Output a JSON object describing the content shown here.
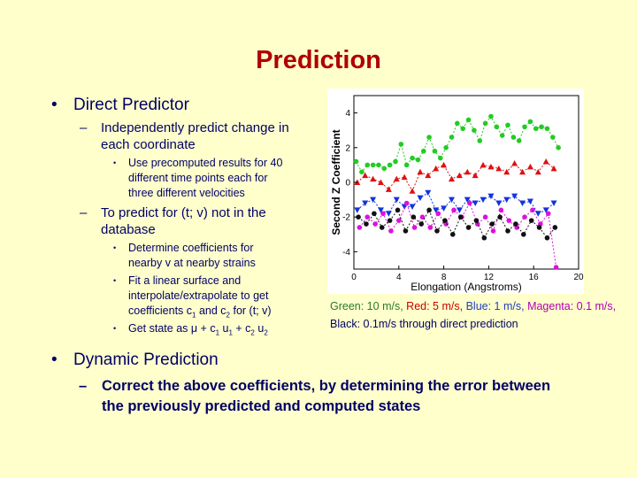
{
  "slide": {
    "title": "Prediction",
    "bullets": {
      "direct": "Direct Predictor",
      "independent_l1": "Independently predict change in",
      "independent_l2": "each coordinate",
      "precomp_l1": "Use precomputed results for 40",
      "precomp_l2": "different time points each for",
      "precomp_l3": "three different velocities",
      "predict_l1": "To predict for (t; v) not in the",
      "predict_l2": "database",
      "determine_l1": "Determine coefficients for",
      "determine_l2": "nearby v at nearby strains",
      "fit_l1": "Fit a linear surface and",
      "fit_l2": "interpolate/extrapolate to get",
      "fit_l3a": "coefficients c",
      "fit_l3_sub1": "1",
      "fit_l3b": " and c",
      "fit_l3_sub2": "2",
      "fit_l3c": " for (t; v)",
      "state_a": "Get state as μ + c",
      "state_sub1": "1",
      "state_b": " u",
      "state_sub2": "1",
      "state_c": " + c",
      "state_sub3": "2",
      "state_d": " u",
      "state_sub4": "2",
      "dynamic": "Dynamic Prediction",
      "correct_l1": "Correct the above coefficients, by determining the error between",
      "correct_l2": "the previously predicted and computed states"
    },
    "caption": {
      "green": "Green: 10 m/s,",
      "red": "Red: 5 m/s,",
      "blue": "Blue: 1 m/s,",
      "magenta": "Magenta: 0.1 m/s,",
      "black": "Black: 0.1m/s through direct prediction"
    },
    "bullet_marks": {
      "l1": "•",
      "l2": "–",
      "l3": "•"
    }
  },
  "chart_data": {
    "type": "scatter",
    "title": "",
    "xlabel": "Elongation (Angstroms)",
    "ylabel": "Second Z Coefficient",
    "xlim": [
      0,
      20
    ],
    "ylim": [
      -5,
      5
    ],
    "xticks": [
      0,
      4,
      8,
      12,
      16,
      20
    ],
    "yticks": [
      -4,
      -2,
      0,
      2,
      4
    ],
    "colors": {
      "green": "#22cc22",
      "red": "#dd1111",
      "blue": "#1133dd",
      "magenta": "#dd11dd",
      "black": "#111111"
    },
    "series": [
      {
        "color": "green",
        "x": [
          0.2,
          0.7,
          1.2,
          1.7,
          2.2,
          2.7,
          3.2,
          3.7,
          4.2,
          4.7,
          5.2,
          5.7,
          6.2,
          6.7,
          7.2,
          7.7,
          8.2,
          8.7,
          9.2,
          9.7,
          10.2,
          10.7,
          11.2,
          11.7,
          12.2,
          12.7,
          13.2,
          13.7,
          14.2,
          14.7,
          15.2,
          15.7,
          16.2,
          16.7,
          17.2,
          17.7,
          18.2
        ],
        "y": [
          1.2,
          0.6,
          1.0,
          1.0,
          1.0,
          0.8,
          1.0,
          1.2,
          2.2,
          1.0,
          1.4,
          1.3,
          1.8,
          2.6,
          1.8,
          1.4,
          2.0,
          2.6,
          3.4,
          3.1,
          3.6,
          3.0,
          2.4,
          3.4,
          3.8,
          3.2,
          2.7,
          3.3,
          2.6,
          2.4,
          3.2,
          3.5,
          3.1,
          3.2,
          3.1,
          2.6,
          2.0
        ]
      },
      {
        "color": "red",
        "x": [
          0.3,
          1.0,
          1.7,
          2.4,
          3.1,
          3.8,
          4.5,
          5.2,
          5.9,
          6.6,
          7.3,
          8.0,
          8.7,
          9.4,
          10.1,
          10.8,
          11.5,
          12.2,
          12.9,
          13.6,
          14.3,
          15.0,
          15.7,
          16.4,
          17.1,
          17.8
        ],
        "y": [
          0.0,
          0.4,
          0.2,
          0.0,
          -0.4,
          0.2,
          0.3,
          -0.5,
          0.6,
          0.4,
          0.8,
          1.0,
          0.2,
          0.4,
          0.6,
          0.4,
          1.0,
          0.9,
          0.8,
          0.6,
          1.1,
          0.6,
          0.9,
          0.6,
          1.2,
          0.8
        ]
      },
      {
        "color": "blue",
        "x": [
          0.3,
          1.0,
          1.7,
          2.4,
          3.1,
          3.8,
          4.5,
          5.2,
          5.9,
          6.6,
          7.3,
          8.0,
          8.7,
          9.4,
          10.1,
          10.8,
          11.5,
          12.2,
          12.9,
          13.6,
          14.3,
          15.0,
          15.7,
          16.4,
          17.1,
          17.8
        ],
        "y": [
          -1.6,
          -1.2,
          -1.0,
          -1.6,
          -1.8,
          -1.0,
          -1.4,
          -1.4,
          -0.9,
          -0.6,
          -1.6,
          -1.5,
          -1.0,
          -1.6,
          -1.0,
          -1.2,
          -1.0,
          -0.8,
          -1.2,
          -1.0,
          -0.8,
          -1.2,
          -1.1,
          -1.8,
          -1.6,
          -1.2
        ]
      },
      {
        "color": "magenta",
        "x": [
          0.5,
          1.2,
          1.9,
          2.6,
          3.3,
          4.0,
          4.7,
          5.4,
          6.1,
          6.8,
          7.5,
          8.2,
          8.9,
          9.6,
          10.3,
          11.0,
          11.7,
          12.4,
          13.1,
          13.8,
          14.5,
          15.2,
          15.9,
          16.6,
          17.3,
          18.0
        ],
        "y": [
          -2.6,
          -2.0,
          -2.4,
          -1.8,
          -2.8,
          -2.2,
          -1.2,
          -2.6,
          -2.0,
          -2.6,
          -1.8,
          -2.4,
          -1.6,
          -2.0,
          -1.2,
          -2.4,
          -2.0,
          -2.8,
          -1.6,
          -2.2,
          -2.6,
          -2.0,
          -1.6,
          -2.4,
          -1.8,
          -4.9
        ]
      },
      {
        "color": "black",
        "x": [
          0.4,
          1.1,
          1.8,
          2.5,
          3.2,
          3.9,
          4.6,
          5.3,
          6.0,
          6.7,
          7.4,
          8.1,
          8.8,
          9.5,
          10.2,
          10.9,
          11.6,
          12.3,
          13.0,
          13.7,
          14.4,
          15.1,
          15.8,
          16.5,
          17.2,
          17.9
        ],
        "y": [
          -2.0,
          -2.4,
          -1.8,
          -2.6,
          -2.2,
          -1.6,
          -2.8,
          -2.0,
          -2.4,
          -1.6,
          -2.8,
          -2.2,
          -3.0,
          -2.0,
          -2.6,
          -2.2,
          -3.2,
          -2.4,
          -2.0,
          -2.8,
          -2.4,
          -3.0,
          -2.2,
          -2.6,
          -3.2,
          -2.6
        ]
      }
    ]
  }
}
